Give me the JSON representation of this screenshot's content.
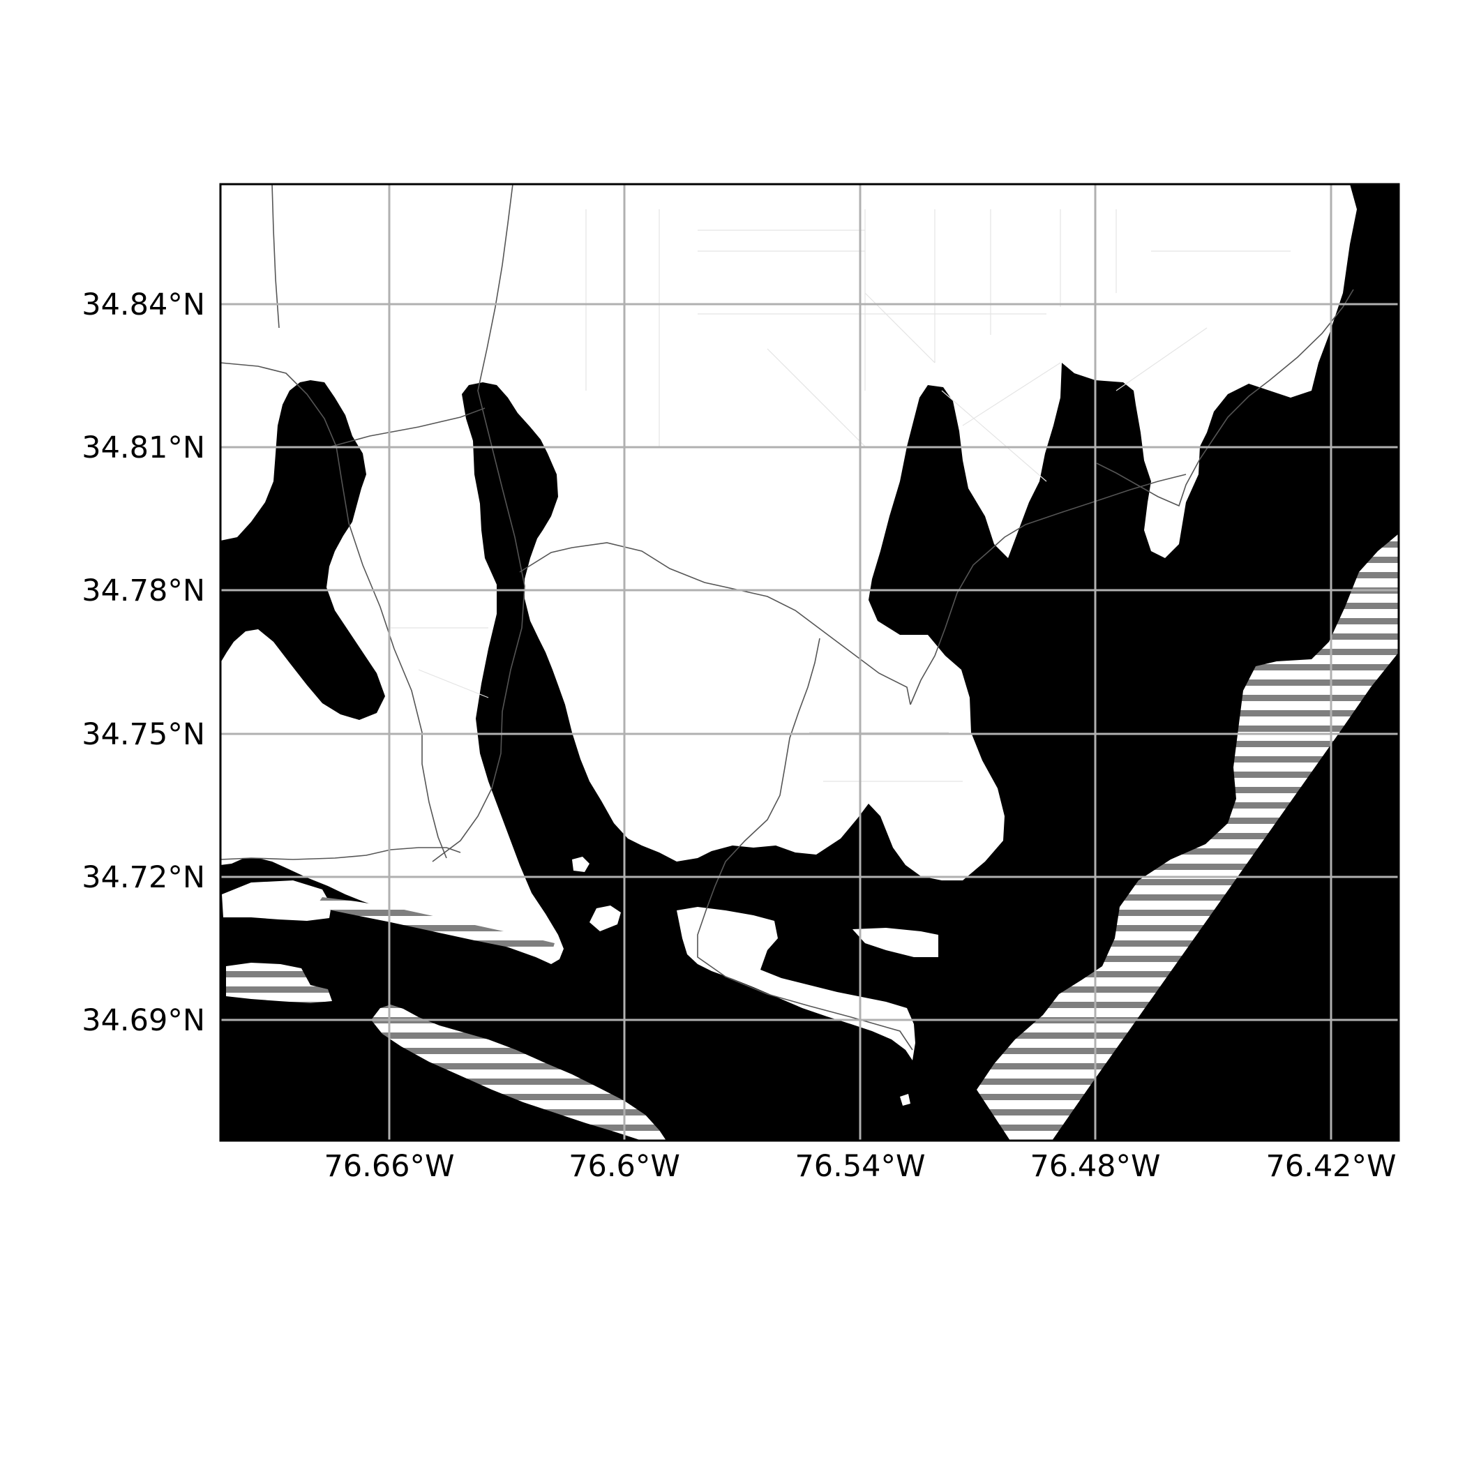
{
  "map": {
    "x_ticks": [
      "76.66°W",
      "76.6°W",
      "76.54°W",
      "76.48°W",
      "76.42°W"
    ],
    "y_ticks": [
      "34.84°N",
      "34.81°N",
      "34.78°N",
      "34.75°N",
      "34.72°N",
      "34.69°N"
    ],
    "colors": {
      "land": "#ffffff",
      "water": "#000000",
      "stripes": "#7f7f7f",
      "grid": "#b0b0b0",
      "frame": "#000000"
    },
    "gridlines": true
  }
}
